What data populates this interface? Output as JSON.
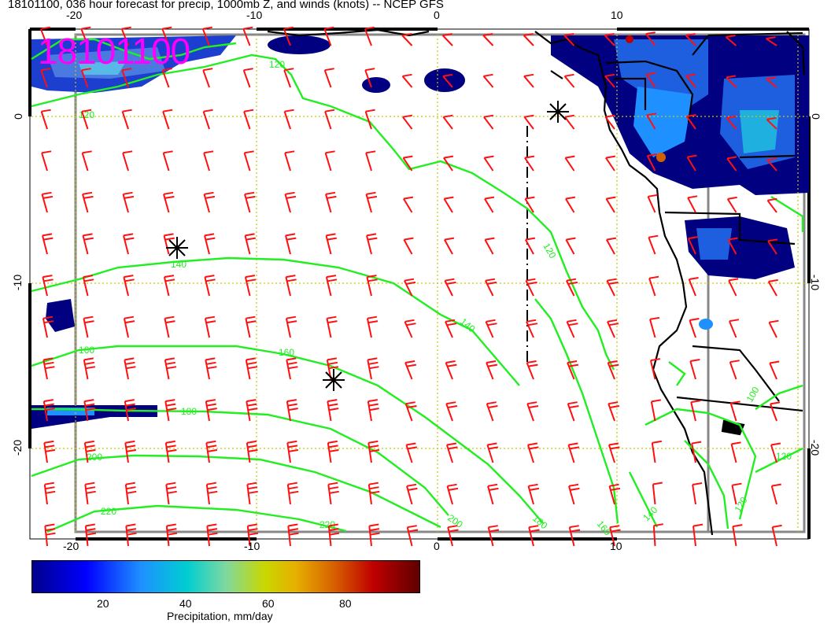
{
  "title": "18101100, 036 hour forecast for precip, 1000mb Z, and winds (knots) -- NCEP GFS",
  "stamp": "18101100",
  "axes": {
    "top_lon": [
      "-20",
      "-10",
      "0",
      "10"
    ],
    "bottom_lon": [
      "-20",
      "-10",
      "0",
      "10"
    ],
    "left_lat": [
      "0",
      "-10",
      "-20"
    ],
    "right_lat": [
      "0",
      "-10",
      "-20"
    ]
  },
  "contour_labels": [
    "120",
    "120",
    "140",
    "160",
    "160",
    "180",
    "200",
    "220",
    "220",
    "120",
    "140",
    "200",
    "180",
    "160",
    "140",
    "100",
    "120",
    "120"
  ],
  "colorbar": {
    "ticks": [
      "20",
      "40",
      "60",
      "80"
    ],
    "title": "Precipitation, mm/day",
    "range": [
      0,
      100
    ],
    "colors": [
      "#00008b",
      "#0000ff",
      "#1e90ff",
      "#00ced1",
      "#7fd8a0",
      "#c8d800",
      "#e6b000",
      "#d76000",
      "#c00000",
      "#600000"
    ]
  },
  "colors": {
    "contour": "#22ee22",
    "barb": "#ff1010",
    "grid": "#c8c800",
    "coast": "#000000",
    "stamp": "#ff00ff"
  }
}
